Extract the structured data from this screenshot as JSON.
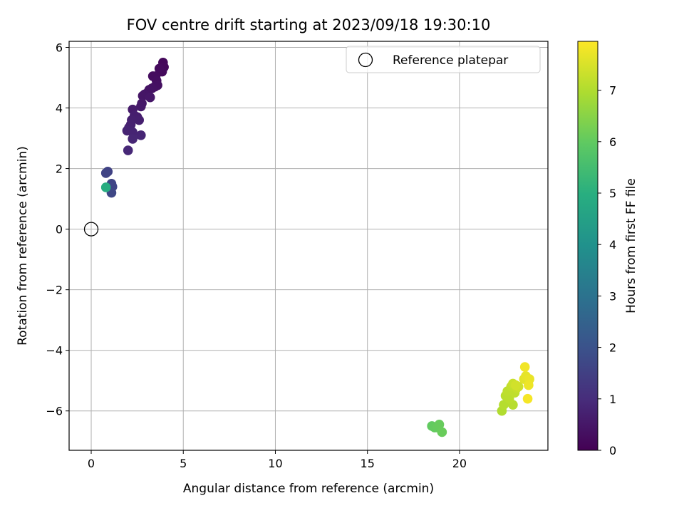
{
  "chart_data": {
    "type": "scatter",
    "title": "FOV centre drift starting at 2023/09/18 19:30:10",
    "xlabel": "Angular distance from reference (arcmin)",
    "ylabel": "Rotation from reference (arcmin)",
    "xlim": [
      -1.2,
      24.8
    ],
    "ylim": [
      -7.3,
      6.2
    ],
    "xticks": [
      0,
      5,
      10,
      15,
      20
    ],
    "yticks": [
      -6,
      -4,
      -2,
      0,
      2,
      4,
      6
    ],
    "grid": true,
    "legend": {
      "placement": "top-right",
      "entries": [
        "Reference platepar"
      ]
    },
    "reference_point": {
      "name": "Reference platepar",
      "x": 0,
      "y": 0
    },
    "colorbar": {
      "label": "Hours from first FF file",
      "colormap": "viridis",
      "range": [
        0,
        7.95
      ],
      "ticks": [
        0,
        1,
        2,
        3,
        4,
        5,
        6,
        7
      ]
    },
    "series": [
      {
        "points": [
          {
            "x": 3.9,
            "y": 5.5,
            "t": 0.15
          },
          {
            "x": 3.95,
            "y": 5.35,
            "t": 0.18
          },
          {
            "x": 3.85,
            "y": 5.2,
            "t": 0.2
          },
          {
            "x": 3.7,
            "y": 5.3,
            "t": 0.22
          },
          {
            "x": 3.5,
            "y": 5.05,
            "t": 0.25
          },
          {
            "x": 3.35,
            "y": 5.05,
            "t": 0.28
          },
          {
            "x": 3.55,
            "y": 4.9,
            "t": 0.3
          },
          {
            "x": 3.6,
            "y": 4.75,
            "t": 0.33
          },
          {
            "x": 3.45,
            "y": 4.7,
            "t": 0.35
          },
          {
            "x": 3.3,
            "y": 4.65,
            "t": 0.38
          },
          {
            "x": 3.15,
            "y": 4.6,
            "t": 0.4
          },
          {
            "x": 3.05,
            "y": 4.5,
            "t": 0.42
          },
          {
            "x": 2.9,
            "y": 4.45,
            "t": 0.45
          },
          {
            "x": 2.8,
            "y": 4.4,
            "t": 0.47
          },
          {
            "x": 3.2,
            "y": 4.35,
            "t": 0.5
          },
          {
            "x": 2.75,
            "y": 4.15,
            "t": 0.52
          },
          {
            "x": 2.7,
            "y": 4.05,
            "t": 0.55
          },
          {
            "x": 2.25,
            "y": 3.95,
            "t": 0.58
          },
          {
            "x": 2.5,
            "y": 3.7,
            "t": 0.62
          },
          {
            "x": 2.35,
            "y": 3.75,
            "t": 0.65
          },
          {
            "x": 2.6,
            "y": 3.6,
            "t": 0.68
          },
          {
            "x": 2.2,
            "y": 3.6,
            "t": 0.7
          },
          {
            "x": 2.15,
            "y": 3.45,
            "t": 0.72
          },
          {
            "x": 2.05,
            "y": 3.35,
            "t": 0.75
          },
          {
            "x": 1.95,
            "y": 3.25,
            "t": 0.78
          },
          {
            "x": 2.25,
            "y": 3.2,
            "t": 0.8
          },
          {
            "x": 2.7,
            "y": 3.1,
            "t": 0.82
          },
          {
            "x": 2.25,
            "y": 2.98,
            "t": 0.85
          },
          {
            "x": 2.0,
            "y": 2.6,
            "t": 0.88
          },
          {
            "x": 0.9,
            "y": 1.9,
            "t": 1.55
          },
          {
            "x": 0.8,
            "y": 1.85,
            "t": 1.6
          },
          {
            "x": 1.1,
            "y": 1.5,
            "t": 1.62
          },
          {
            "x": 1.15,
            "y": 1.4,
            "t": 1.65
          },
          {
            "x": 1.1,
            "y": 1.2,
            "t": 1.68
          },
          {
            "x": 0.8,
            "y": 1.38,
            "t": 4.9
          },
          {
            "x": 18.5,
            "y": -6.5,
            "t": 6.0
          },
          {
            "x": 18.65,
            "y": -6.55,
            "t": 6.02
          },
          {
            "x": 18.8,
            "y": -6.55,
            "t": 6.05
          },
          {
            "x": 18.9,
            "y": -6.45,
            "t": 6.08
          },
          {
            "x": 19.05,
            "y": -6.7,
            "t": 6.1
          },
          {
            "x": 22.3,
            "y": -6.0,
            "t": 7.0
          },
          {
            "x": 22.4,
            "y": -5.8,
            "t": 7.05
          },
          {
            "x": 22.9,
            "y": -5.8,
            "t": 7.08
          },
          {
            "x": 22.5,
            "y": -5.5,
            "t": 7.1
          },
          {
            "x": 22.7,
            "y": -5.6,
            "t": 7.12
          },
          {
            "x": 22.6,
            "y": -5.35,
            "t": 7.15
          },
          {
            "x": 23.0,
            "y": -5.4,
            "t": 7.18
          },
          {
            "x": 22.8,
            "y": -5.2,
            "t": 7.2
          },
          {
            "x": 23.1,
            "y": -5.25,
            "t": 7.25
          },
          {
            "x": 22.9,
            "y": -5.1,
            "t": 7.3
          },
          {
            "x": 23.2,
            "y": -5.2,
            "t": 7.35
          },
          {
            "x": 23.05,
            "y": -5.15,
            "t": 7.4
          },
          {
            "x": 23.5,
            "y": -4.95,
            "t": 7.6
          },
          {
            "x": 23.6,
            "y": -4.85,
            "t": 7.65
          },
          {
            "x": 23.8,
            "y": -4.95,
            "t": 7.7
          },
          {
            "x": 23.75,
            "y": -5.15,
            "t": 7.75
          },
          {
            "x": 23.55,
            "y": -4.55,
            "t": 7.8
          },
          {
            "x": 23.7,
            "y": -5.6,
            "t": 7.85
          }
        ]
      }
    ]
  }
}
